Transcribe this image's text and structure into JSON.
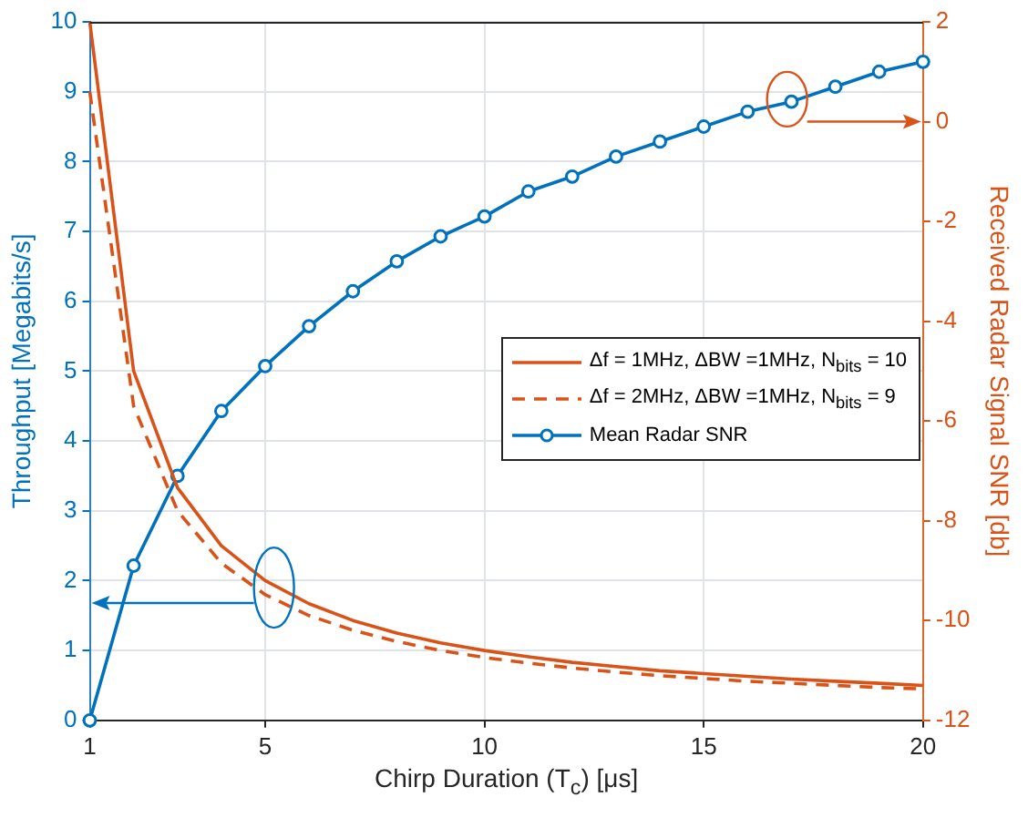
{
  "chart_data": {
    "type": "line",
    "xlabel": "Chirp Duration (T$_{c}$) [μs]",
    "ylabel": "Throughput [Megabits/s]",
    "y2label": "Received Radar Signal SNR [db]",
    "x": [
      1,
      2,
      3,
      4,
      5,
      6,
      7,
      8,
      9,
      10,
      11,
      12,
      13,
      14,
      15,
      16,
      17,
      18,
      19,
      20
    ],
    "xlim": [
      1,
      20
    ],
    "xticks": [
      1,
      5,
      10,
      15,
      20
    ],
    "ylim": [
      0,
      10
    ],
    "yticks": [
      0,
      1,
      2,
      3,
      4,
      5,
      6,
      7,
      8,
      9,
      10
    ],
    "y2lim": [
      -12,
      2
    ],
    "y2ticks": [
      -12,
      -10,
      -8,
      -6,
      -4,
      -2,
      0,
      2
    ],
    "grid": true,
    "legend": "right",
    "marker": "none",
    "line_style": "solid",
    "series": [
      {
        "name": "Δf = 1MHz, ΔBW =1MHz, N$_{bits}$ = 10",
        "color": "#d95319",
        "values": [
          10,
          5,
          3.33,
          2.5,
          2,
          1.67,
          1.43,
          1.25,
          1.11,
          1,
          0.91,
          0.83,
          0.77,
          0.71,
          0.67,
          0.63,
          0.59,
          0.56,
          0.53,
          0.5
        ]
      },
      {
        "name": "Δf = 2MHz, ΔBW =1MHz, N$_{bits}$ = 9",
        "color": "#d95319",
        "line_style": "dashed",
        "values": [
          9,
          4.5,
          3,
          2.25,
          1.8,
          1.5,
          1.29,
          1.13,
          1,
          0.9,
          0.82,
          0.75,
          0.69,
          0.64,
          0.6,
          0.56,
          0.53,
          0.5,
          0.47,
          0.45
        ]
      },
      {
        "name": "Mean Radar SNR",
        "color": "#0072bd",
        "axis": "y2",
        "marker": "circle",
        "values": [
          -12,
          -8.9,
          -7.1,
          -5.8,
          -4.9,
          -4.1,
          -3.4,
          -2.8,
          -2.3,
          -1.9,
          -1.4,
          -1.1,
          -0.7,
          -0.4,
          -0.1,
          0.2,
          0.4,
          0.7,
          1.0,
          1.2
        ]
      }
    ]
  }
}
